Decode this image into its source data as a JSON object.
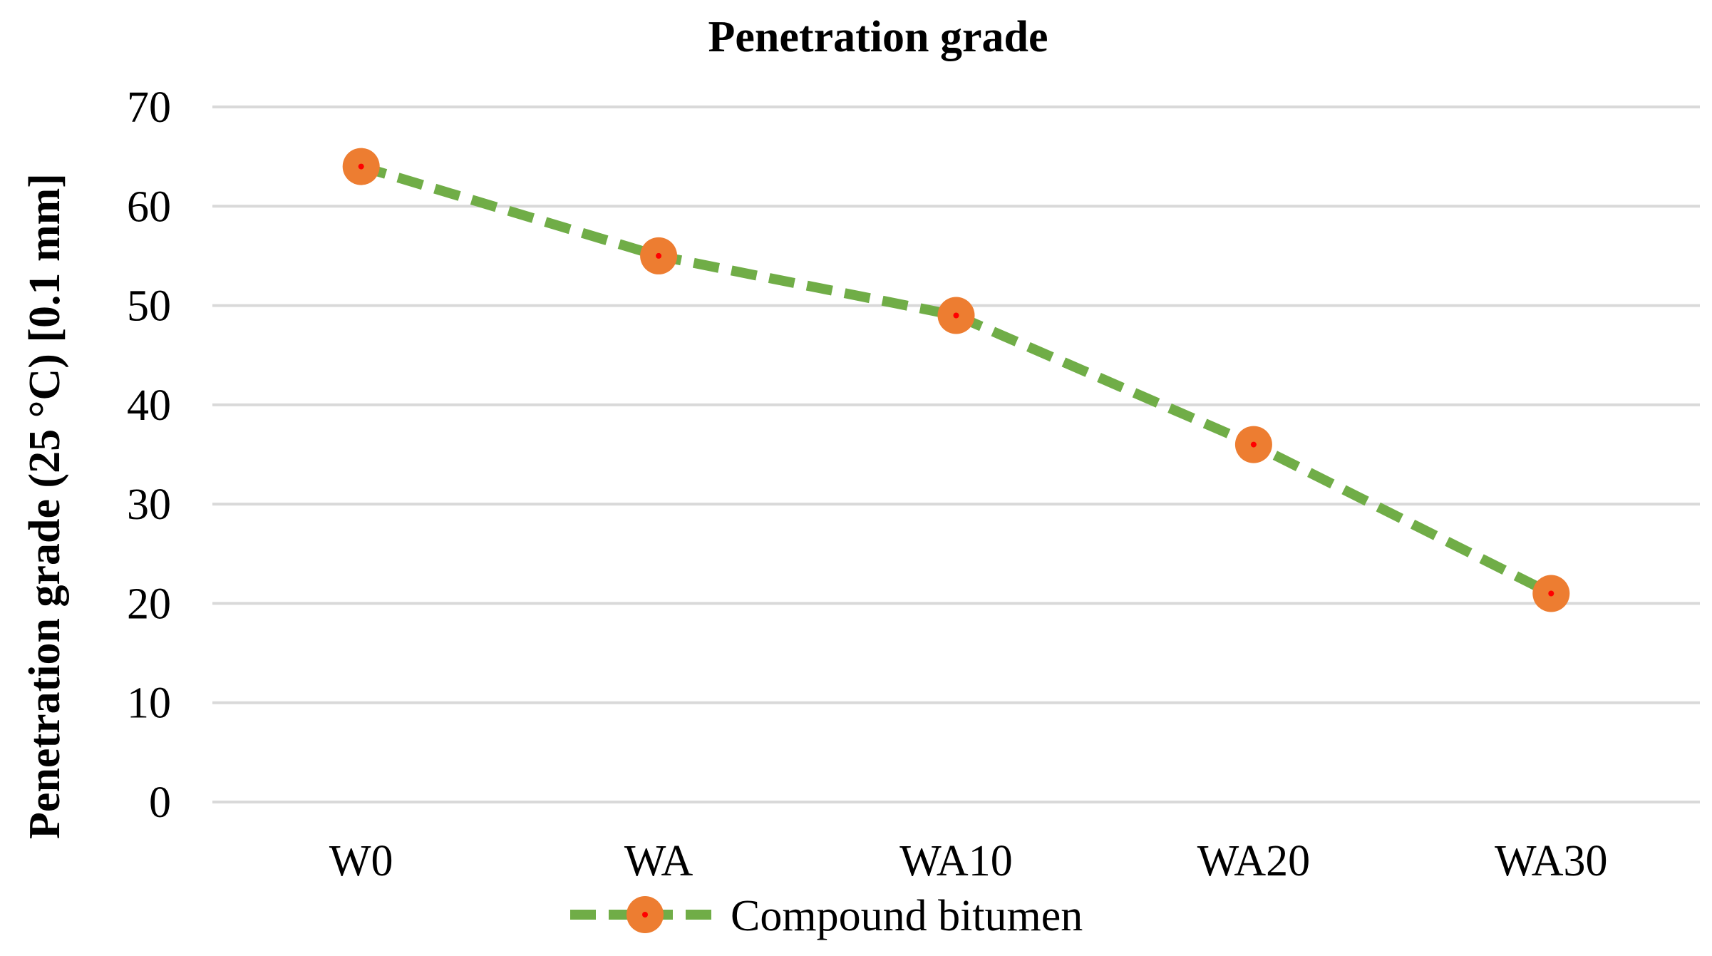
{
  "chart_data": {
    "type": "line",
    "title": "Penetration grade",
    "xlabel": "",
    "ylabel": "Penetration grade (25 °C) [0.1 mm]",
    "categories": [
      "W0",
      "WA",
      "WA10",
      "WA20",
      "WA30"
    ],
    "series": [
      {
        "name": "Compound bitumen",
        "values": [
          64,
          55,
          49,
          36,
          21
        ],
        "line_color": "#70ad47",
        "line_style": "dashed",
        "marker_color": "#ed7d31",
        "marker_center_color": "#ff0000"
      }
    ],
    "ylim": [
      0,
      70
    ],
    "yticks": [
      0,
      10,
      20,
      30,
      40,
      50,
      60,
      70
    ],
    "grid": true,
    "grid_color": "#d9d9d9",
    "legend_position": "bottom"
  }
}
